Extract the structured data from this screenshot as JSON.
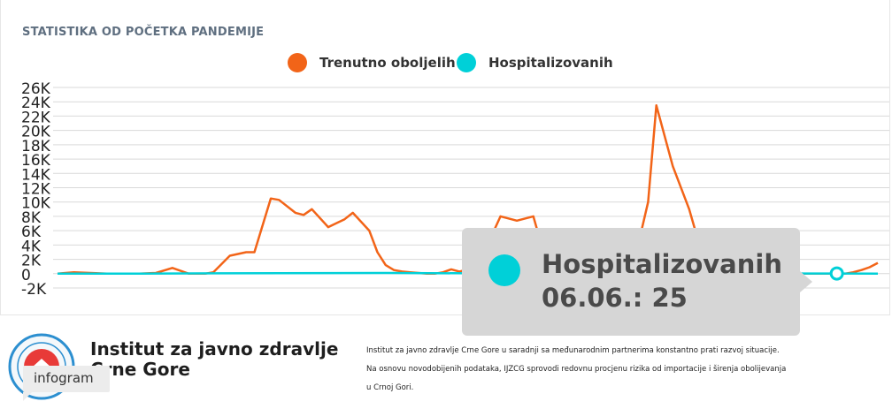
{
  "chart_title": "STATISTIKA OD POČETKA PANDEMIJE",
  "tooltip": {
    "series": "Hospitalizovanih",
    "text": "06.06.: 25"
  },
  "footer": {
    "org_name": "Institut za javno zdravlje Crne Gore",
    "badge": "infogram",
    "description": [
      "Institut za javno zdravlje Crne Gore u saradnji sa međunarodnim partnerima konstantno prati razvoj situacije.",
      "Na osnovu novodobijenih podataka, IJZCG sprovodi redovnu procjenu rizika od importacije i širenja obolijevanja",
      "u Crnoj Gori."
    ]
  },
  "colors": {
    "series_active": "#f26418",
    "series_hospital": "#00d0d8",
    "grid": "#d9d9d9",
    "tooltip_bg": "#d6d6d6"
  },
  "chart_data": {
    "type": "line",
    "title": "STATISTIKA OD POČETKA PANDEMIJE",
    "xlabel": "",
    "ylabel": "",
    "ylim": [
      -2000,
      26000
    ],
    "y_ticks": [
      "-2K",
      "0",
      "2K",
      "4K",
      "6K",
      "8K",
      "10K",
      "12K",
      "14K",
      "16K",
      "18K",
      "20K",
      "22K",
      "24K",
      "26K"
    ],
    "y_tick_values": [
      -2000,
      0,
      2000,
      4000,
      6000,
      8000,
      10000,
      12000,
      14000,
      16000,
      18000,
      20000,
      22000,
      24000,
      26000
    ],
    "legend_position": "top-center",
    "grid": true,
    "x_index_range": [
      0,
      100
    ],
    "series": [
      {
        "name": "Trenutno oboljelih",
        "color": "#f26418",
        "x": [
          0,
          2,
          4,
          6,
          8,
          10,
          12,
          14,
          16,
          18,
          19,
          21,
          23,
          24,
          26,
          27,
          29,
          30,
          31,
          33,
          35,
          36,
          38,
          39,
          40,
          41,
          42,
          43,
          45,
          46,
          47,
          48,
          49,
          50,
          52,
          54,
          56,
          58,
          59,
          61,
          64,
          66,
          67,
          68,
          70,
          72,
          73,
          75,
          77,
          78,
          79,
          80,
          81,
          82,
          83,
          84,
          85,
          86,
          88,
          90,
          92,
          94,
          96,
          97,
          98,
          99,
          100
        ],
        "y": [
          0,
          200,
          100,
          0,
          0,
          0,
          100,
          800,
          0,
          0,
          200,
          2500,
          3000,
          3000,
          10500,
          10300,
          8500,
          8200,
          9000,
          6500,
          7600,
          8500,
          6000,
          3000,
          1200,
          500,
          300,
          200,
          0,
          0,
          200,
          600,
          300,
          600,
          3000,
          8000,
          7400,
          8000,
          4000,
          2000,
          700,
          0,
          0,
          0,
          200,
          10000,
          23500,
          15000,
          9000,
          5000,
          0,
          0,
          0,
          200,
          500,
          800,
          500,
          500,
          0,
          0,
          0,
          0,
          0,
          200,
          500,
          900,
          1500
        ]
      },
      {
        "name": "Hospitalizovanih",
        "color": "#00d0d8",
        "x": [
          0,
          5,
          10,
          20,
          40,
          60,
          80,
          95,
          100
        ],
        "y": [
          0,
          0,
          0,
          50,
          100,
          0,
          0,
          25,
          0
        ]
      }
    ],
    "highlighted_point": {
      "series": "Hospitalizovanih",
      "label": "06.06.",
      "value": 25,
      "x": 95
    }
  }
}
